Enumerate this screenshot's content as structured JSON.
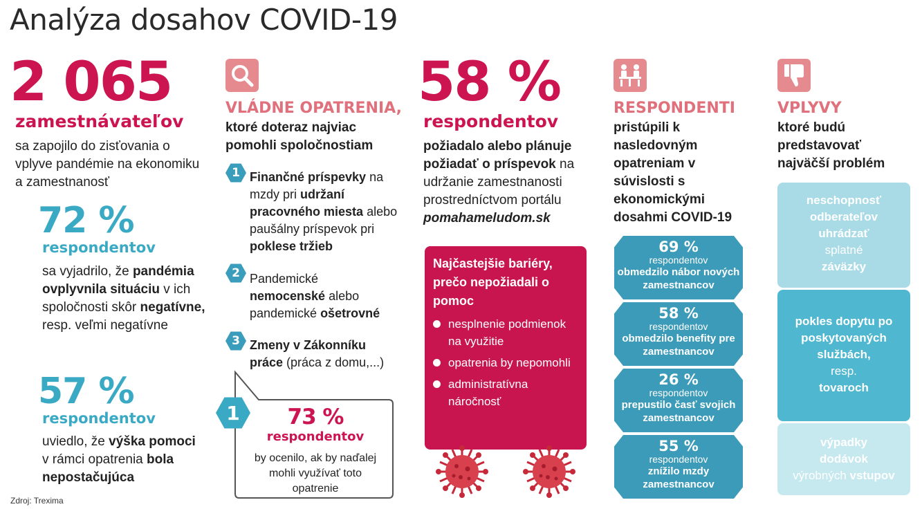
{
  "title": "Analýza dosahov COVID-19",
  "colors": {
    "crimson": "#cc1451",
    "teal": "#3aa9c4",
    "pink": "#e0707c",
    "tile": "#e58a8f",
    "dark_teal": "#3b9bb8",
    "light_teal": "#a9dbe6",
    "mid_teal": "#4fb7cf"
  },
  "col1": {
    "big_number": "2 065",
    "big_label": "zamestnávateľov",
    "desc": "sa zapojilo do zisťovania o vplyve pandémie na ekonomiku a zamestnanosť",
    "stat1": {
      "pct": "72 %",
      "label": "respondentov",
      "t1": "sa vyjadrilo, že ",
      "b1": "pandémia ovplyvnila situáciu",
      "t2": " v ich spoločnosti skôr ",
      "b2": "negatívne,",
      "t3": " resp. veľmi negatívne"
    },
    "stat2": {
      "pct": "57 %",
      "label": "respondentov",
      "t1": "uviedlo, že ",
      "b1": "výška pomoci",
      "t2": " v rámci opatrenia ",
      "b2": "bola nepostačujúca"
    }
  },
  "col2": {
    "icon": "magnifier-icon",
    "heading": "VLÁDNE OPATRENIA,",
    "sub": "ktoré doteraz najviac pomohli spoločnostiam",
    "items": [
      {
        "n": "1",
        "b1": "Finančné príspevky",
        "t1": " na mzdy pri ",
        "b2": "udržaní pracovného miesta",
        "t2": " alebo paušálny príspevok pri ",
        "b3": "poklese tržieb"
      },
      {
        "n": "2",
        "t0": "Pandemické ",
        "b1": "nemocenské",
        "t1": " alebo pandemické ",
        "b2": "ošetrovné"
      },
      {
        "n": "3",
        "b1": "Zmeny v Zákonníku práce",
        "t1": " (práca z domu,...)"
      }
    ],
    "bubble": {
      "n": "1",
      "pct": "73 %",
      "label": "respondentov",
      "text": "by ocenilo, ak by naďalej mohli využívať toto opatrenie"
    }
  },
  "col3": {
    "big_number": "58 %",
    "big_label": "respondentov",
    "b1": "požiadalo alebo plánuje požiadať o príspevok",
    "t1": " na udržanie zamestnanosti prostredníctvom portálu ",
    "portal": "pomahameludom.sk",
    "barrier_title": "Najčastejšie bariéry, prečo nepožiadali o pomoc",
    "barriers": [
      "nesplnenie podmienok na využitie",
      "opatrenia by nepomohli",
      "administratívna náročnosť"
    ],
    "virus_icon": "virus-icon"
  },
  "col4": {
    "icon": "people-at-table-icon",
    "heading": "RESPONDENTI",
    "sub": "pristúpili k nasledovným opatreniam v súvislosti s ekonomickými dosahmi COVID-19",
    "measures": [
      {
        "pct": "69 %",
        "label": "respondentov",
        "desc": "obmedzilo nábor nových zamestnancov"
      },
      {
        "pct": "58 %",
        "label": "respondentov",
        "desc": "obmedzilo benefity pre zamestnancov"
      },
      {
        "pct": "26 %",
        "label": "respondentov",
        "desc": "prepustilo časť svojich zamestnancov"
      },
      {
        "pct": "55 %",
        "label": "respondentov",
        "desc": "znížilo mzdy zamestnancov"
      }
    ]
  },
  "col5": {
    "icon": "thumbs-down-icon",
    "heading": "VPLYVY",
    "sub": "ktoré budú predstavovať najväčší problém",
    "impacts": [
      {
        "b1": "neschopnosť odberateľov uhrádzať",
        "t1": " splatné ",
        "b2": "záväzky"
      },
      {
        "b1": "pokles dopytu po poskytovaných službách,",
        "t1": " resp. ",
        "b2": "tovaroch"
      },
      {
        "b1": "výpadky dodávok",
        "t1": " výrobných ",
        "b2": "vstupov"
      }
    ]
  },
  "source": "Zdroj: Trexima"
}
